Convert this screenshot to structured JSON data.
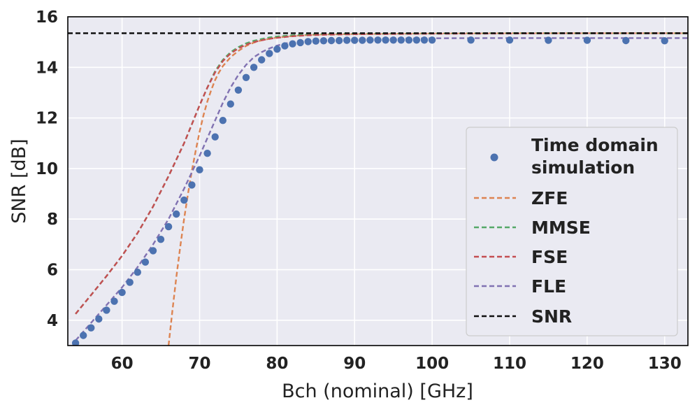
{
  "chart_data": {
    "type": "line",
    "title": "",
    "xlabel": "Bch (nominal) [GHz]",
    "ylabel": "SNR [dB]",
    "xlim": [
      53,
      133
    ],
    "ylim": [
      3,
      16
    ],
    "xticks": [
      60,
      70,
      80,
      90,
      100,
      110,
      120,
      130
    ],
    "yticks": [
      4,
      6,
      8,
      10,
      12,
      14,
      16
    ],
    "grid": true,
    "legend_position": "right",
    "series": [
      {
        "name": "Time domain simulation",
        "kind": "scatter",
        "color": "#4c72b0",
        "x": [
          54,
          55,
          56,
          57,
          58,
          59,
          60,
          61,
          62,
          63,
          64,
          65,
          66,
          67,
          68,
          69,
          70,
          71,
          72,
          73,
          74,
          75,
          76,
          77,
          78,
          79,
          80,
          81,
          82,
          83,
          84,
          85,
          86,
          87,
          88,
          89,
          90,
          91,
          92,
          93,
          94,
          95,
          96,
          97,
          98,
          99,
          100,
          105,
          110,
          115,
          120,
          125,
          130
        ],
        "y": [
          3.1,
          3.4,
          3.7,
          4.05,
          4.4,
          4.75,
          5.1,
          5.5,
          5.9,
          6.3,
          6.75,
          7.2,
          7.7,
          8.2,
          8.75,
          9.35,
          9.95,
          10.6,
          11.25,
          11.9,
          12.55,
          13.1,
          13.6,
          14.0,
          14.3,
          14.55,
          14.72,
          14.85,
          14.93,
          14.98,
          15.02,
          15.04,
          15.05,
          15.06,
          15.06,
          15.07,
          15.07,
          15.07,
          15.08,
          15.08,
          15.08,
          15.08,
          15.08,
          15.08,
          15.08,
          15.08,
          15.08,
          15.08,
          15.08,
          15.07,
          15.07,
          15.06,
          15.05
        ]
      },
      {
        "name": "ZFE",
        "kind": "dashed-line",
        "color": "#dd8452",
        "x": [
          66,
          66.5,
          67,
          67.5,
          68,
          68.5,
          69,
          69.5,
          70,
          70.5,
          71,
          71.5,
          72,
          72.5,
          73,
          74,
          75,
          76,
          77,
          78,
          79,
          80,
          82,
          84,
          86,
          90,
          100,
          110,
          120,
          133
        ],
        "y": [
          3.0,
          4.4,
          5.7,
          6.9,
          8.0,
          9.0,
          9.9,
          10.7,
          11.45,
          12.1,
          12.65,
          13.1,
          13.5,
          13.8,
          14.05,
          14.4,
          14.65,
          14.85,
          14.98,
          15.07,
          15.13,
          15.18,
          15.24,
          15.28,
          15.3,
          15.32,
          15.34,
          15.35,
          15.35,
          15.35
        ]
      },
      {
        "name": "MMSE",
        "kind": "dashed-line",
        "color": "#55a868",
        "x": [
          54,
          56,
          58,
          60,
          62,
          64,
          66,
          68,
          69,
          70,
          71,
          72,
          73,
          74,
          75,
          76,
          77,
          78,
          79,
          80,
          82,
          84,
          86,
          90,
          100,
          110,
          120,
          133
        ],
        "y": [
          4.25,
          5.0,
          5.75,
          6.55,
          7.45,
          8.5,
          9.7,
          11.0,
          11.75,
          12.5,
          13.2,
          13.85,
          14.3,
          14.6,
          14.8,
          14.95,
          15.05,
          15.12,
          15.18,
          15.22,
          15.27,
          15.3,
          15.32,
          15.33,
          15.34,
          15.35,
          15.35,
          15.35
        ]
      },
      {
        "name": "FSE",
        "kind": "dashed-line",
        "color": "#c44e52",
        "x": [
          54,
          56,
          58,
          60,
          62,
          64,
          66,
          68,
          69,
          70,
          71,
          72,
          73,
          74,
          75,
          76,
          77,
          78,
          79,
          80,
          82,
          84,
          86,
          90,
          100,
          110,
          120,
          133
        ],
        "y": [
          4.25,
          5.0,
          5.75,
          6.55,
          7.45,
          8.5,
          9.7,
          11.0,
          11.75,
          12.5,
          13.2,
          13.8,
          14.25,
          14.55,
          14.75,
          14.9,
          15.0,
          15.07,
          15.13,
          15.17,
          15.23,
          15.27,
          15.29,
          15.31,
          15.33,
          15.34,
          15.35,
          15.35
        ]
      },
      {
        "name": "FLE",
        "kind": "dashed-line",
        "color": "#8172b2",
        "x": [
          54,
          56,
          58,
          60,
          62,
          64,
          66,
          68,
          70,
          72,
          73,
          74,
          75,
          76,
          77,
          78,
          79,
          80,
          81,
          82,
          83,
          84,
          86,
          90,
          100,
          110,
          120,
          133
        ],
        "y": [
          3.2,
          3.9,
          4.6,
          5.3,
          6.1,
          7.0,
          8.0,
          9.2,
          10.5,
          11.9,
          12.6,
          13.2,
          13.7,
          14.1,
          14.4,
          14.6,
          14.75,
          14.86,
          14.94,
          15.0,
          15.04,
          15.07,
          15.1,
          15.13,
          15.15,
          15.16,
          15.16,
          15.16
        ]
      },
      {
        "name": "SNR",
        "kind": "dashed-line",
        "color": "#111111",
        "x": [
          53,
          133
        ],
        "y": [
          15.35,
          15.35
        ]
      }
    ]
  }
}
